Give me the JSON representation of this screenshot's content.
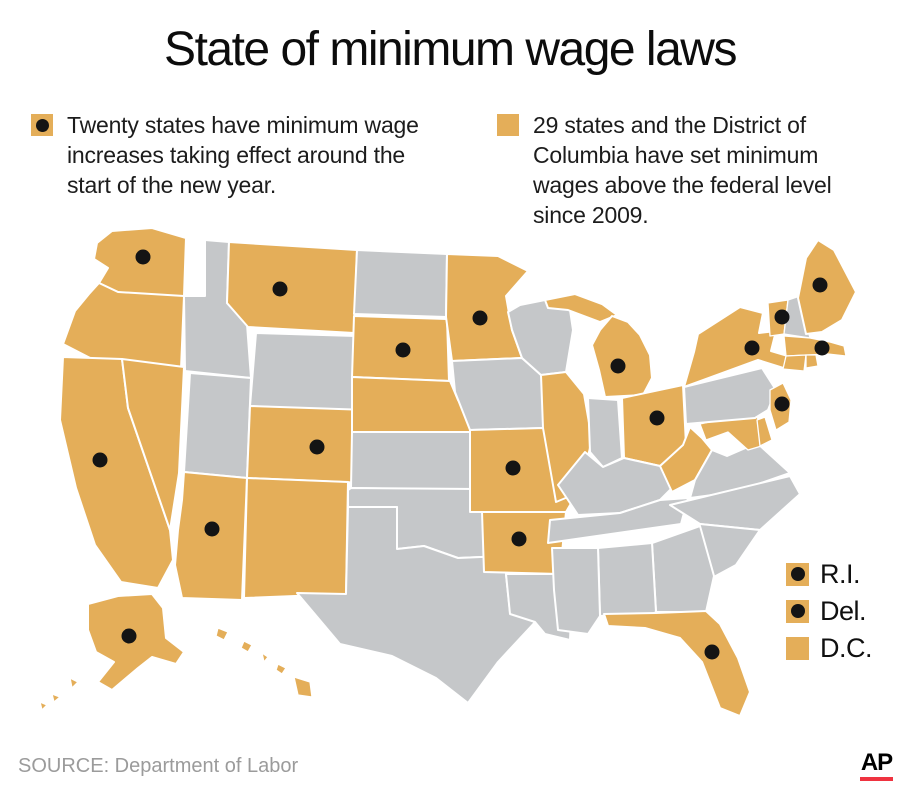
{
  "title": "State of minimum wage laws",
  "legend_items": [
    {
      "text": "Twenty states have minimum wage increases taking effect around the start of the new year.",
      "swatch_has_dot": true
    },
    {
      "text": "29 states and the District of Columbia have set minimum wages above the federal level since 2009.",
      "swatch_has_dot": false
    }
  ],
  "colors": {
    "above_federal": "#E4AE59",
    "other_state": "#C5C7C9",
    "dot": "#141414",
    "ap_red": "#EF3340"
  },
  "side_legend": [
    {
      "label": "R.I.",
      "has_dot": true
    },
    {
      "label": "Del.",
      "has_dot": true
    },
    {
      "label": "D.C.",
      "has_dot": false
    }
  ],
  "map": {
    "states": [
      {
        "id": "WA",
        "name": "Washington",
        "above_federal": true,
        "increase": true
      },
      {
        "id": "OR",
        "name": "Oregon",
        "above_federal": true,
        "increase": false
      },
      {
        "id": "CA",
        "name": "California",
        "above_federal": true,
        "increase": true
      },
      {
        "id": "NV",
        "name": "Nevada",
        "above_federal": true,
        "increase": false
      },
      {
        "id": "ID",
        "name": "Idaho",
        "above_federal": false,
        "increase": false
      },
      {
        "id": "MT",
        "name": "Montana",
        "above_federal": true,
        "increase": true
      },
      {
        "id": "WY",
        "name": "Wyoming",
        "above_federal": false,
        "increase": false
      },
      {
        "id": "UT",
        "name": "Utah",
        "above_federal": false,
        "increase": false
      },
      {
        "id": "AZ",
        "name": "Arizona",
        "above_federal": true,
        "increase": true
      },
      {
        "id": "CO",
        "name": "Colorado",
        "above_federal": true,
        "increase": true
      },
      {
        "id": "NM",
        "name": "New Mexico",
        "above_federal": true,
        "increase": false
      },
      {
        "id": "ND",
        "name": "North Dakota",
        "above_federal": false,
        "increase": false
      },
      {
        "id": "SD",
        "name": "South Dakota",
        "above_federal": true,
        "increase": true
      },
      {
        "id": "NE",
        "name": "Nebraska",
        "above_federal": true,
        "increase": false
      },
      {
        "id": "KS",
        "name": "Kansas",
        "above_federal": false,
        "increase": false
      },
      {
        "id": "OK",
        "name": "Oklahoma",
        "above_federal": false,
        "increase": false
      },
      {
        "id": "TX",
        "name": "Texas",
        "above_federal": false,
        "increase": false
      },
      {
        "id": "MN",
        "name": "Minnesota",
        "above_federal": true,
        "increase": true
      },
      {
        "id": "IA",
        "name": "Iowa",
        "above_federal": false,
        "increase": false
      },
      {
        "id": "MO",
        "name": "Missouri",
        "above_federal": true,
        "increase": true
      },
      {
        "id": "AR",
        "name": "Arkansas",
        "above_federal": true,
        "increase": true
      },
      {
        "id": "LA",
        "name": "Louisiana",
        "above_federal": false,
        "increase": false
      },
      {
        "id": "WI",
        "name": "Wisconsin",
        "above_federal": false,
        "increase": false
      },
      {
        "id": "IL",
        "name": "Illinois",
        "above_federal": true,
        "increase": false
      },
      {
        "id": "MI",
        "name": "Michigan",
        "above_federal": true,
        "increase": true
      },
      {
        "id": "IN",
        "name": "Indiana",
        "above_federal": false,
        "increase": false
      },
      {
        "id": "OH",
        "name": "Ohio",
        "above_federal": true,
        "increase": true
      },
      {
        "id": "KY",
        "name": "Kentucky",
        "above_federal": false,
        "increase": false
      },
      {
        "id": "TN",
        "name": "Tennessee",
        "above_federal": false,
        "increase": false
      },
      {
        "id": "MS",
        "name": "Mississippi",
        "above_federal": false,
        "increase": false
      },
      {
        "id": "AL",
        "name": "Alabama",
        "above_federal": false,
        "increase": false
      },
      {
        "id": "GA",
        "name": "Georgia",
        "above_federal": false,
        "increase": false
      },
      {
        "id": "FL",
        "name": "Florida",
        "above_federal": true,
        "increase": true
      },
      {
        "id": "SC",
        "name": "South Carolina",
        "above_federal": false,
        "increase": false
      },
      {
        "id": "NC",
        "name": "North Carolina",
        "above_federal": false,
        "increase": false
      },
      {
        "id": "VA",
        "name": "Virginia",
        "above_federal": false,
        "increase": false
      },
      {
        "id": "WV",
        "name": "West Virginia",
        "above_federal": true,
        "increase": false
      },
      {
        "id": "MD",
        "name": "Maryland",
        "above_federal": true,
        "increase": false
      },
      {
        "id": "DE",
        "name": "Delaware",
        "above_federal": true,
        "increase": true
      },
      {
        "id": "NJ",
        "name": "New Jersey",
        "above_federal": true,
        "increase": true
      },
      {
        "id": "PA",
        "name": "Pennsylvania",
        "above_federal": false,
        "increase": false
      },
      {
        "id": "NY",
        "name": "New York",
        "above_federal": true,
        "increase": true
      },
      {
        "id": "CT",
        "name": "Connecticut",
        "above_federal": true,
        "increase": false
      },
      {
        "id": "RI",
        "name": "Rhode Island",
        "above_federal": true,
        "increase": true
      },
      {
        "id": "MA",
        "name": "Massachusetts",
        "above_federal": true,
        "increase": true
      },
      {
        "id": "VT",
        "name": "Vermont",
        "above_federal": true,
        "increase": true
      },
      {
        "id": "NH",
        "name": "New Hampshire",
        "above_federal": false,
        "increase": false
      },
      {
        "id": "ME",
        "name": "Maine",
        "above_federal": true,
        "increase": true
      },
      {
        "id": "AK",
        "name": "Alaska",
        "above_federal": true,
        "increase": true
      },
      {
        "id": "HI",
        "name": "Hawaii",
        "above_federal": true,
        "increase": false
      }
    ]
  },
  "source": "SOURCE: Department of Labor",
  "credit": "AP"
}
